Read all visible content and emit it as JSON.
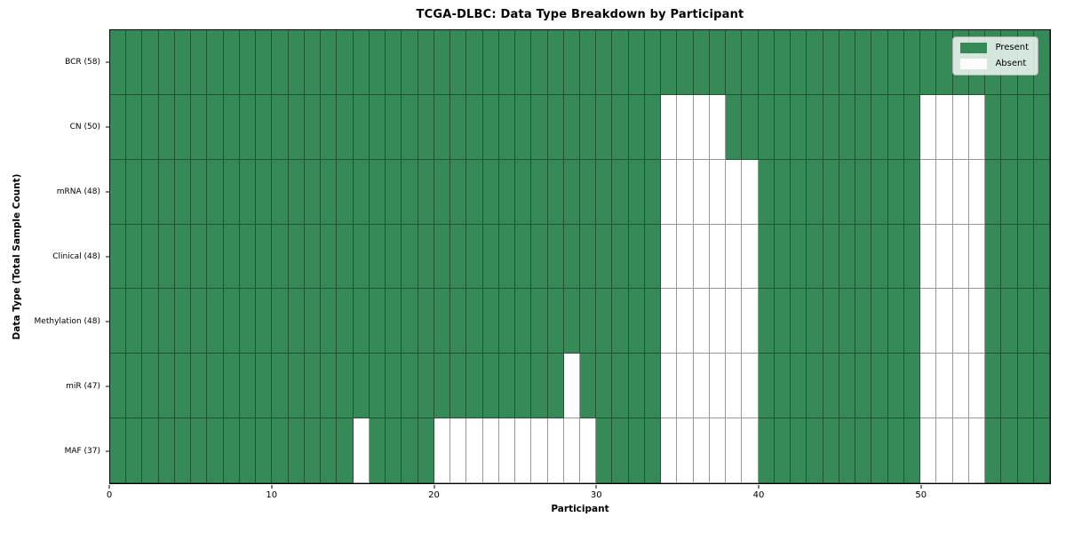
{
  "chart_data": {
    "type": "heatmap",
    "title": "TCGA-DLBC: Data Type Breakdown by Participant",
    "xlabel": "Participant",
    "ylabel": "Data Type (Total Sample Count)",
    "n_participants": 58,
    "x_range": [
      0,
      58
    ],
    "x_ticks": [
      0,
      10,
      20,
      30,
      40,
      50
    ],
    "grid": true,
    "legend_position": "upper right",
    "colors": {
      "present": "#358a58",
      "absent": "#ffffff",
      "grid_line": "rgba(0,0,0,0.4)"
    },
    "legend": [
      {
        "label": "Present",
        "color": "#358a58"
      },
      {
        "label": "Absent",
        "color": "#ffffff"
      }
    ],
    "rows": [
      {
        "label": "BCR (58)",
        "data_type": "BCR",
        "total": 58,
        "absent_participants": []
      },
      {
        "label": "CN (50)",
        "data_type": "CN",
        "total": 50,
        "absent_participants": [
          34,
          35,
          36,
          37,
          50,
          51,
          52,
          53
        ]
      },
      {
        "label": "mRNA (48)",
        "data_type": "mRNA",
        "total": 48,
        "absent_participants": [
          34,
          35,
          36,
          37,
          38,
          39,
          50,
          51,
          52,
          53
        ]
      },
      {
        "label": "Clinical (48)",
        "data_type": "Clinical",
        "total": 48,
        "absent_participants": [
          34,
          35,
          36,
          37,
          38,
          39,
          50,
          51,
          52,
          53
        ]
      },
      {
        "label": "Methylation (48)",
        "data_type": "Methylation",
        "total": 48,
        "absent_participants": [
          34,
          35,
          36,
          37,
          38,
          39,
          50,
          51,
          52,
          53
        ]
      },
      {
        "label": "miR (47)",
        "data_type": "miR",
        "total": 47,
        "absent_participants": [
          28,
          34,
          35,
          36,
          37,
          38,
          39,
          50,
          51,
          52,
          53
        ]
      },
      {
        "label": "MAF (37)",
        "data_type": "MAF",
        "total": 37,
        "absent_participants": [
          15,
          20,
          21,
          22,
          23,
          24,
          25,
          26,
          27,
          28,
          29,
          34,
          35,
          36,
          37,
          38,
          39,
          50,
          51,
          52,
          53
        ]
      }
    ]
  }
}
